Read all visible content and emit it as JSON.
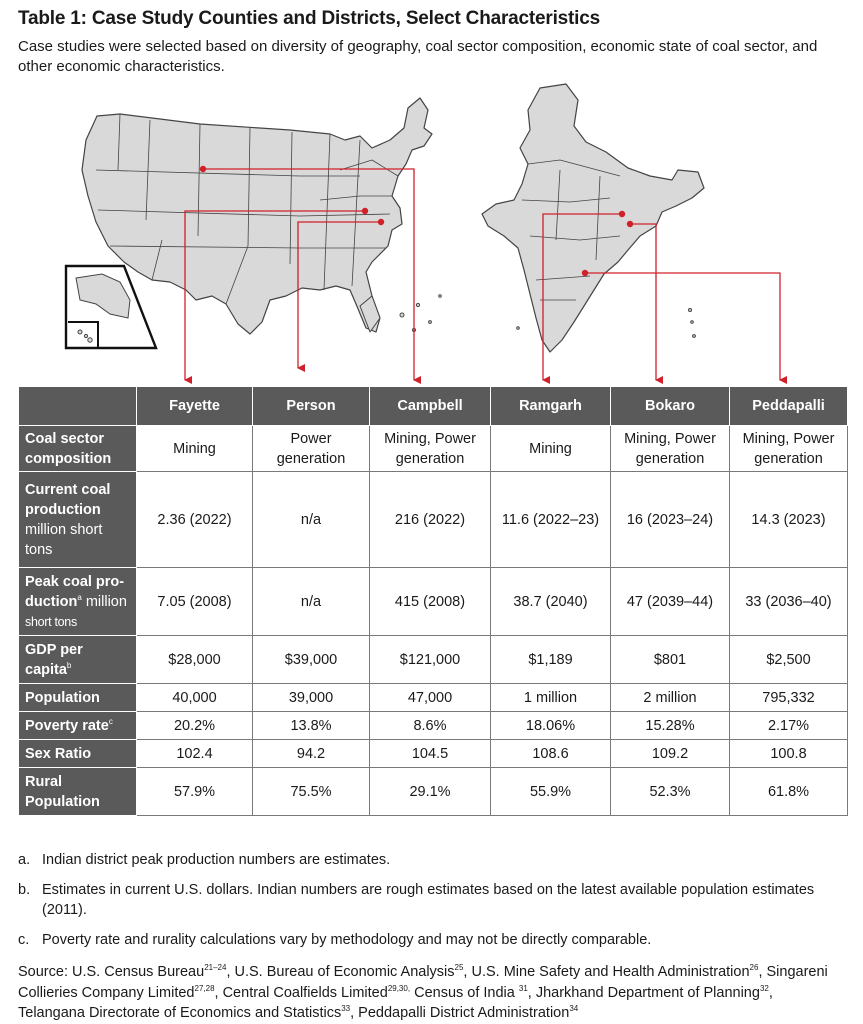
{
  "title": "Table 1: Case Study Counties and Districts, Select Characteristics",
  "subtitle": "Case studies were selected based on diversity of geography, coal sector composition, economic state of coal sector, and other economic characteristics.",
  "colors": {
    "header_bg": "#5a5a5a",
    "map_fill": "#d9d9d9",
    "map_stroke": "#444444",
    "marker": "#d0202a"
  },
  "maps": {
    "us_map": "united-states-map",
    "india_map": "india-map"
  },
  "table": {
    "columns": [
      "Fayette",
      "Person",
      "Campbell",
      "Ramgarh",
      "Bokaro",
      "Peddapalli"
    ],
    "rows": [
      {
        "label": "Coal sector composition",
        "unit": "",
        "values": [
          "Mining",
          "Power generation",
          "Mining, Power generation",
          "Mining",
          "Mining, Power generation",
          "Mining, Power generation"
        ]
      },
      {
        "label": "Current coal production",
        "unit": "million short tons",
        "values": [
          "2.36 (2022)",
          "n/a",
          "216 (2022)",
          "11.6 (2022–23)",
          "16 (2023–24)",
          "14.3 (2023)"
        ]
      },
      {
        "label_part1": "Peak coal pro-",
        "label_part2": "duction",
        "note": "a",
        "unit_a": " million",
        "unit_b": "short tons",
        "values": [
          "7.05 (2008)",
          "n/a",
          "415 (2008)",
          "38.7 (2040)",
          "47 (2039–44)",
          "33 (2036–40)"
        ]
      },
      {
        "label": "GDP per capita",
        "note": "b",
        "values": [
          "$28,000",
          "$39,000",
          "$121,000",
          "$1,189",
          "$801",
          "$2,500"
        ]
      },
      {
        "label": "Population",
        "values": [
          "40,000",
          "39,000",
          "47,000",
          "1 million",
          "2 million",
          "795,332"
        ]
      },
      {
        "label": "Poverty rate",
        "note": "c",
        "values": [
          "20.2%",
          "13.8%",
          "8.6%",
          "18.06%",
          "15.28%",
          "2.17%"
        ]
      },
      {
        "label": "Sex Ratio",
        "values": [
          "102.4",
          "94.2",
          "104.5",
          "108.6",
          "109.2",
          "100.8"
        ]
      },
      {
        "label": "Rural Population",
        "values": [
          "57.9%",
          "75.5%",
          "29.1%",
          "55.9%",
          "52.3%",
          "61.8%"
        ]
      }
    ]
  },
  "notes": [
    {
      "label": "a.",
      "text": "Indian district peak production numbers are estimates."
    },
    {
      "label": "b.",
      "text": "Estimates in current U.S. dollars. Indian numbers are rough estimates based on the latest available population estimates (2011)."
    },
    {
      "label": "c.",
      "text": "Poverty rate and rurality calculations vary by methodology and may not be directly comparable."
    }
  ],
  "source": {
    "prefix": "Source: U.S. Census Bureau",
    "s1": "21–24",
    "t1": ", U.S. Bureau of Economic Analysis",
    "s2": "25",
    "t2": ", U.S. Mine Safety and Health Administration",
    "s3": "26",
    "t3": ", Singareni Collieries Company Limited",
    "s4": "27,28",
    "t4": ", Central Coalfields Limited",
    "s5": "29,30,",
    "t5": " Census of India ",
    "s6": "31",
    "t6": ", Jharkhand Department of Planning",
    "s7": "32",
    "t7": ", Telangana Directorate of Economics and Statistics",
    "s8": "33",
    "t8": ", Peddapalli District Administration",
    "s9": "34"
  }
}
